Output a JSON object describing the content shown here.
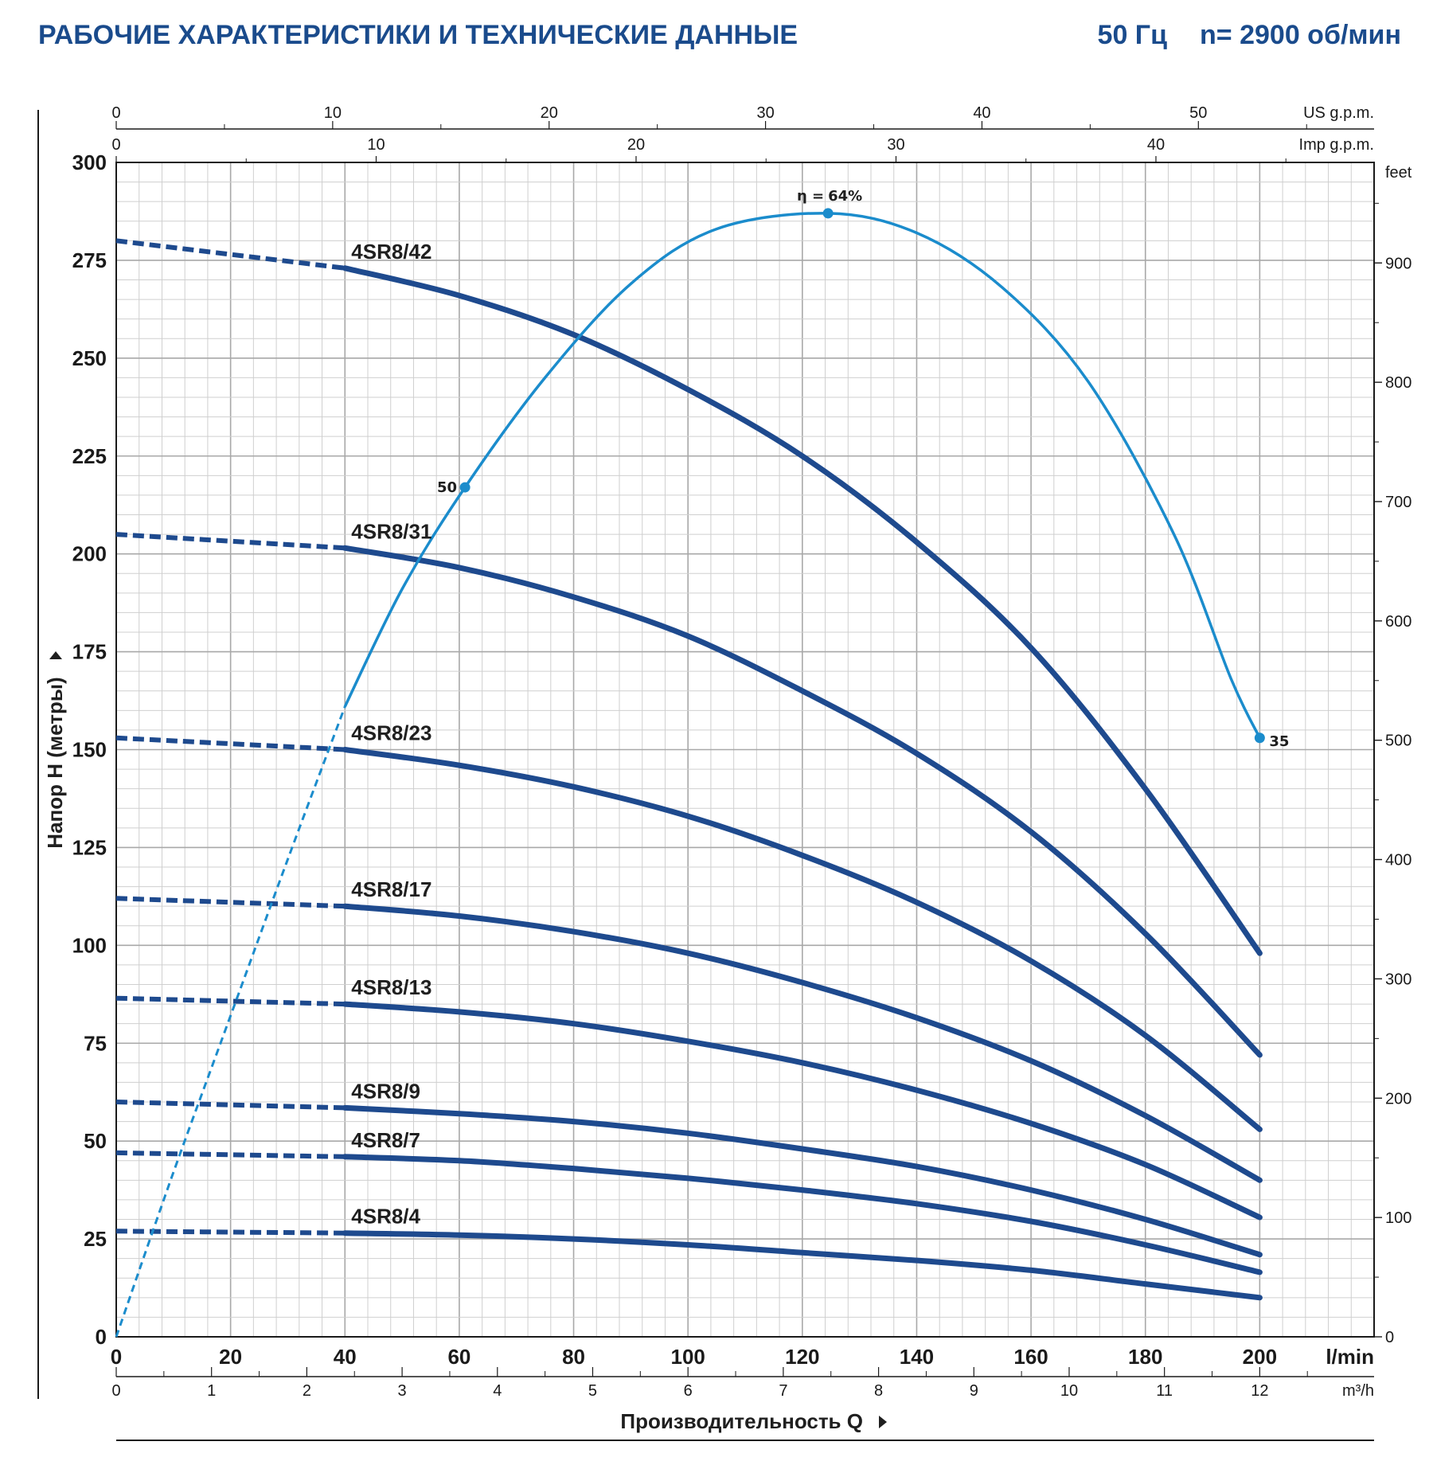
{
  "header": {
    "title": "РАБОЧИЕ ХАРАКТЕРИСТИКИ И ТЕХНИЧЕСКИЕ ДАННЫЕ",
    "frequency": "50 Гц",
    "speed": "n= 2900 об/мин"
  },
  "colors": {
    "title": "#1a4b8c",
    "pump_curves": "#1e4a8e",
    "efficiency": "#1b8ccc",
    "grid_minor": "#cfcfcf",
    "grid_major": "#a8a8a8"
  },
  "chart_data": {
    "type": "line",
    "grid": true,
    "x": {
      "label": "Производительность Q",
      "unit": "l/min",
      "range": [
        0,
        220
      ],
      "ticks": [
        0,
        20,
        40,
        60,
        80,
        100,
        120,
        140,
        160,
        180,
        200
      ]
    },
    "x_m3h": {
      "unit": "m³/h",
      "ticks": [
        0,
        1,
        2,
        3,
        4,
        5,
        6,
        7,
        8,
        9,
        10,
        11,
        12
      ]
    },
    "x_us_gpm": {
      "unit": "US g.p.m.",
      "ticks": [
        0,
        10,
        20,
        30,
        40,
        50
      ]
    },
    "x_imp_gpm": {
      "unit": "Imp g.p.m.",
      "ticks": [
        0,
        10,
        20,
        30,
        40
      ]
    },
    "y": {
      "label": "Напор H (метры)",
      "range": [
        0,
        300
      ],
      "ticks": [
        0,
        25,
        50,
        75,
        100,
        125,
        150,
        175,
        200,
        225,
        250,
        275,
        300
      ]
    },
    "y_right": {
      "unit": "feet",
      "ticks": [
        0,
        100,
        200,
        300,
        400,
        500,
        600,
        700,
        800,
        900
      ]
    },
    "x_unit_label": "l/min",
    "x_m3h_label": "m³/h",
    "x_us_label": "US g.p.m.",
    "x_imp_label": "Imp g.p.m.",
    "y_right_label": "feet",
    "operating_range_start": 40,
    "series": [
      {
        "name": "4SR8/42",
        "x": [
          0,
          40,
          60,
          80,
          100,
          120,
          140,
          160,
          180,
          200
        ],
        "y": [
          280,
          273,
          266,
          256,
          242,
          225,
          203,
          176,
          140,
          98
        ]
      },
      {
        "name": "4SR8/31",
        "x": [
          0,
          40,
          60,
          80,
          100,
          120,
          140,
          160,
          180,
          200
        ],
        "y": [
          205,
          201.5,
          196.5,
          189,
          179,
          165,
          149,
          129,
          103,
          72
        ]
      },
      {
        "name": "4SR8/23",
        "x": [
          0,
          40,
          60,
          80,
          100,
          120,
          140,
          160,
          180,
          200
        ],
        "y": [
          153,
          150,
          146,
          140.5,
          133,
          123,
          111,
          96,
          77,
          53
        ]
      },
      {
        "name": "4SR8/17",
        "x": [
          0,
          40,
          60,
          80,
          100,
          120,
          140,
          160,
          180,
          200
        ],
        "y": [
          112,
          110,
          107.5,
          103.5,
          98,
          90.5,
          81.5,
          70.5,
          56.5,
          40
        ]
      },
      {
        "name": "4SR8/13",
        "x": [
          0,
          40,
          60,
          80,
          100,
          120,
          140,
          160,
          180,
          200
        ],
        "y": [
          86.5,
          85,
          83,
          80,
          75.5,
          70,
          63,
          54.5,
          44,
          30.5
        ]
      },
      {
        "name": "4SR8/9",
        "x": [
          0,
          40,
          60,
          80,
          100,
          120,
          140,
          160,
          180,
          200
        ],
        "y": [
          60,
          58.5,
          57,
          55,
          52,
          48,
          43.5,
          37.5,
          30,
          21
        ]
      },
      {
        "name": "4SR8/7",
        "x": [
          0,
          40,
          60,
          80,
          100,
          120,
          140,
          160,
          180,
          200
        ],
        "y": [
          47,
          46,
          45,
          43,
          40.5,
          37.5,
          34,
          29.5,
          23.5,
          16.5
        ]
      },
      {
        "name": "4SR8/4",
        "x": [
          0,
          40,
          60,
          80,
          100,
          120,
          140,
          160,
          180,
          200
        ],
        "y": [
          27,
          26.5,
          26,
          25,
          23.5,
          21.5,
          19.5,
          17,
          13.5,
          10
        ]
      }
    ],
    "efficiency": {
      "label_prefix": "η =",
      "dashed": {
        "x": [
          0,
          10,
          20,
          30,
          40
        ],
        "y": [
          0,
          42,
          82,
          122,
          161
        ]
      },
      "solid": {
        "x": [
          40,
          50,
          61,
          75,
          90,
          105,
          124.5,
          140,
          155,
          170,
          185,
          195,
          200
        ],
        "y": [
          161,
          191,
          217,
          245,
          269,
          283,
          287,
          282,
          268,
          244,
          205,
          168,
          153
        ]
      },
      "points": [
        {
          "x": 61,
          "y": 217,
          "label": "50"
        },
        {
          "x": 124.5,
          "y": 287,
          "label": "64%"
        },
        {
          "x": 200,
          "y": 153,
          "label": "35"
        }
      ]
    }
  }
}
